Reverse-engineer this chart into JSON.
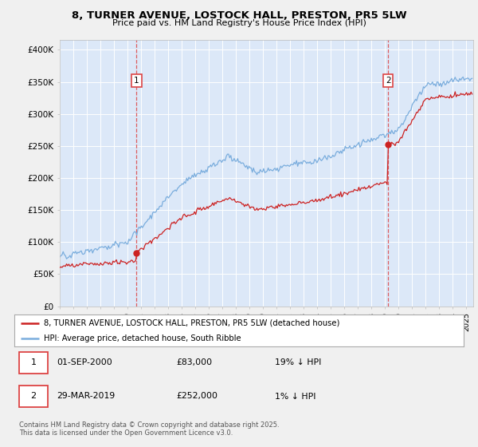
{
  "title_line1": "8, TURNER AVENUE, LOSTOCK HALL, PRESTON, PR5 5LW",
  "title_line2": "Price paid vs. HM Land Registry's House Price Index (HPI)",
  "ylabel_ticks": [
    "£0",
    "£50K",
    "£100K",
    "£150K",
    "£200K",
    "£250K",
    "£300K",
    "£350K",
    "£400K"
  ],
  "ytick_values": [
    0,
    50000,
    100000,
    150000,
    200000,
    250000,
    300000,
    350000,
    400000
  ],
  "ylim": [
    0,
    415000
  ],
  "xlim_left": 1995.0,
  "xlim_right": 2025.5,
  "sale1_date_num": 2000.67,
  "sale1_price": 83000,
  "sale1_label": "1",
  "sale2_date_num": 2019.22,
  "sale2_price": 252000,
  "sale2_label": "2",
  "legend_line1": "8, TURNER AVENUE, LOSTOCK HALL, PRESTON, PR5 5LW (detached house)",
  "legend_line2": "HPI: Average price, detached house, South Ribble",
  "footer": "Contains HM Land Registry data © Crown copyright and database right 2025.\nThis data is licensed under the Open Government Licence v3.0.",
  "fig_bg_color": "#f0f0f0",
  "plot_bg_color": "#dce8f8",
  "grid_color": "#ffffff",
  "red_color": "#cc2222",
  "blue_color": "#7aaddd",
  "dashed_color": "#dd4444"
}
